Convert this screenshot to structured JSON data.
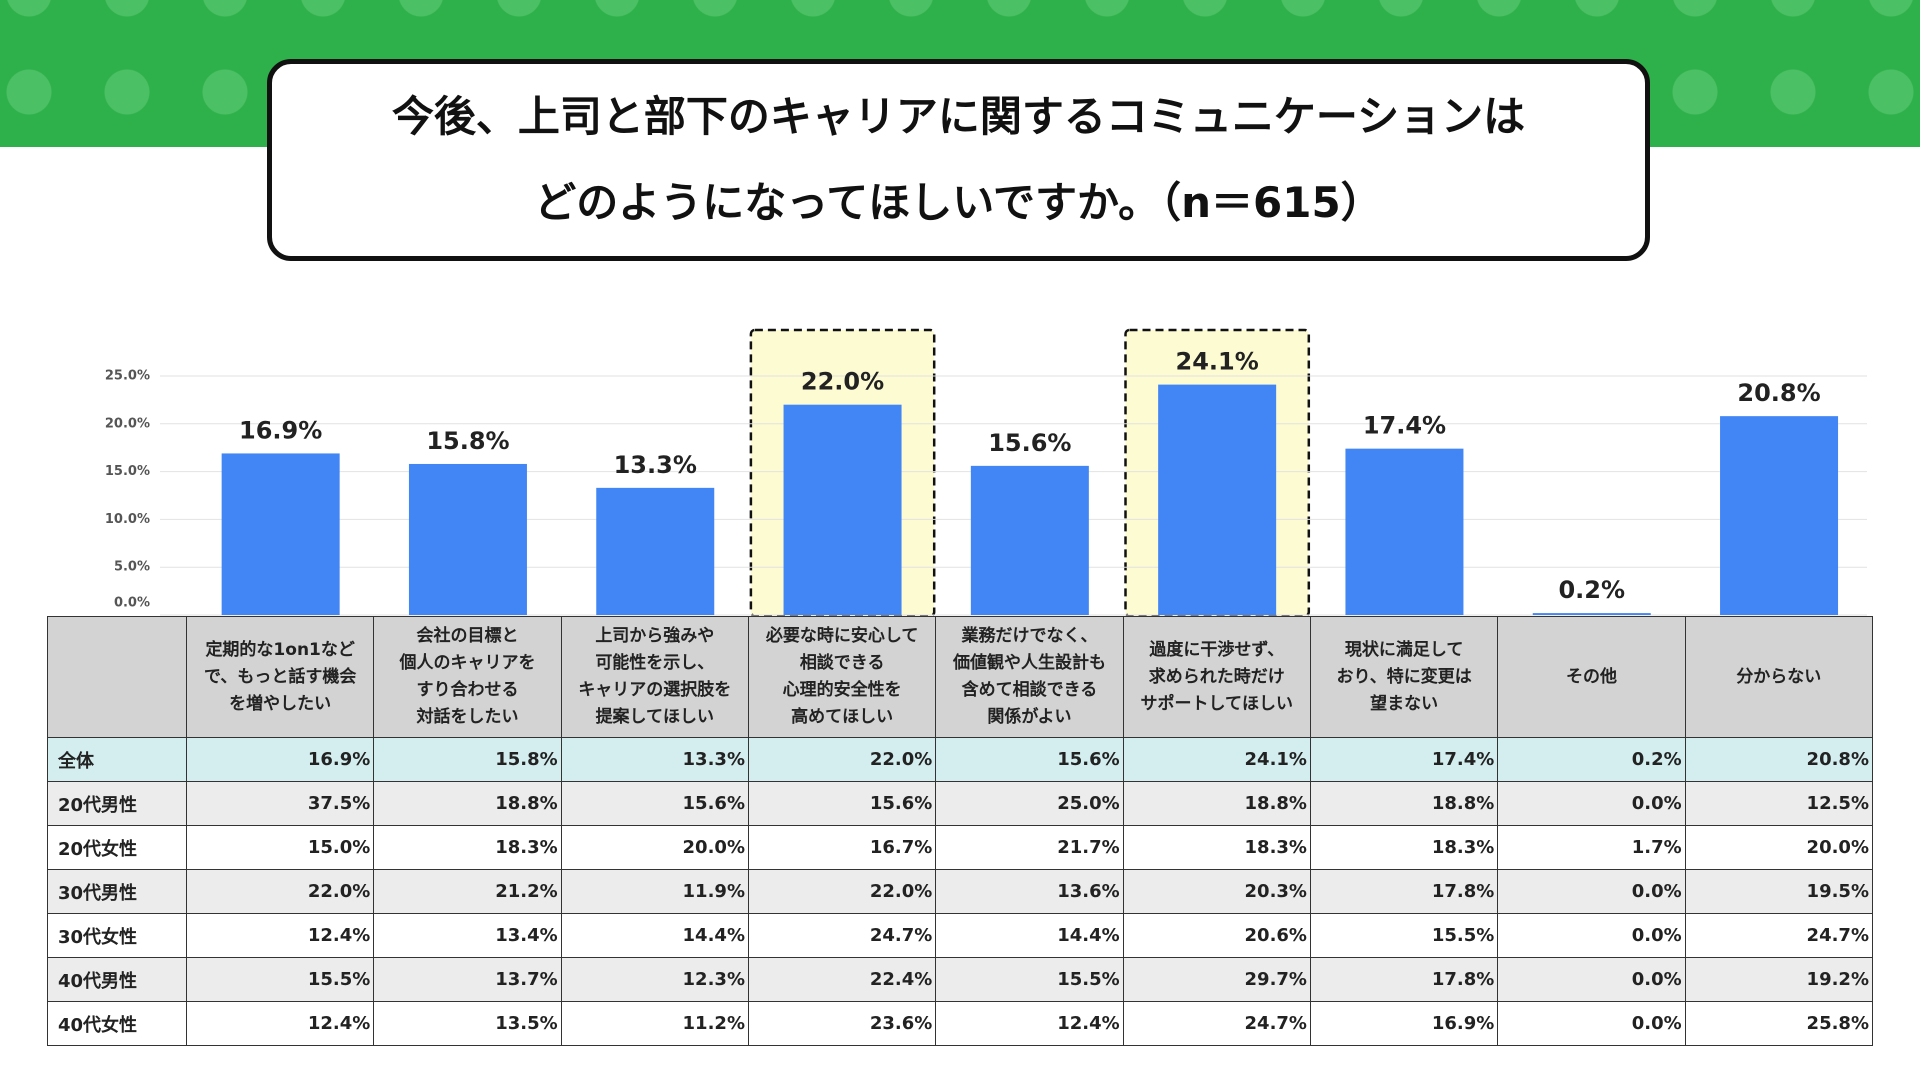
{
  "chart_data": {
    "type": "bar",
    "title": "今後、上司と部下のキャリアに関するコミュニケーションは\nどのようになってほしいですか。（n＝615）",
    "categories": [
      "定期的な1on1など\nで、もっと話す機会\nを増やしたい",
      "会社の目標と\n個人のキャリアを\nすり合わせる\n対話をしたい",
      "上司から強みや\n可能性を示し、\nキャリアの選択肢を\n提案してほしい",
      "必要な時に安心して\n相談できる\n心理的安全性を\n高めてほしい",
      "業務だけでなく、\n価値観や人生設計も\n含めて相談できる\n関係がよい",
      "過度に干渉せず、\n求められた時だけ\nサポートしてほしい",
      "現状に満足して\nおり、特に変更は\n望まない",
      "その他",
      "分からない"
    ],
    "values": [
      16.9,
      15.8,
      13.3,
      22.0,
      15.6,
      24.1,
      17.4,
      0.2,
      20.8
    ],
    "value_labels": [
      "16.9%",
      "15.8%",
      "13.3%",
      "22.0%",
      "15.6%",
      "24.1%",
      "17.4%",
      "0.2%",
      "20.8%"
    ],
    "color": "#4285f4",
    "ylim": [
      0,
      25
    ],
    "yticks": [
      {
        "value": 0,
        "label": "0.0%"
      },
      {
        "value": 5,
        "label": "5.0%"
      },
      {
        "value": 10,
        "label": "10.0%"
      },
      {
        "value": 15,
        "label": "15.0%"
      },
      {
        "value": 20,
        "label": "20.0%"
      },
      {
        "value": 25,
        "label": "25.0%"
      }
    ],
    "grid": true,
    "highlighted": [
      3,
      5
    ]
  },
  "table": {
    "rows": [
      {
        "label": "全体",
        "cells": [
          "16.9%",
          "15.8%",
          "13.3%",
          "22.0%",
          "15.6%",
          "24.1%",
          "17.4%",
          "0.2%",
          "20.8%"
        ]
      },
      {
        "label": "20代男性",
        "cells": [
          "37.5%",
          "18.8%",
          "15.6%",
          "15.6%",
          "25.0%",
          "18.8%",
          "18.8%",
          "0.0%",
          "12.5%"
        ]
      },
      {
        "label": "20代女性",
        "cells": [
          "15.0%",
          "18.3%",
          "20.0%",
          "16.7%",
          "21.7%",
          "18.3%",
          "18.3%",
          "1.7%",
          "20.0%"
        ]
      },
      {
        "label": "30代男性",
        "cells": [
          "22.0%",
          "21.2%",
          "11.9%",
          "22.0%",
          "13.6%",
          "20.3%",
          "17.8%",
          "0.0%",
          "19.5%"
        ]
      },
      {
        "label": "30代女性",
        "cells": [
          "12.4%",
          "13.4%",
          "14.4%",
          "24.7%",
          "14.4%",
          "20.6%",
          "15.5%",
          "0.0%",
          "24.7%"
        ]
      },
      {
        "label": "40代男性",
        "cells": [
          "15.5%",
          "13.7%",
          "12.3%",
          "22.4%",
          "15.5%",
          "29.7%",
          "17.8%",
          "0.0%",
          "19.2%"
        ]
      },
      {
        "label": "40代女性",
        "cells": [
          "12.4%",
          "13.5%",
          "11.2%",
          "23.6%",
          "12.4%",
          "24.7%",
          "16.9%",
          "0.0%",
          "25.8%"
        ]
      }
    ]
  }
}
